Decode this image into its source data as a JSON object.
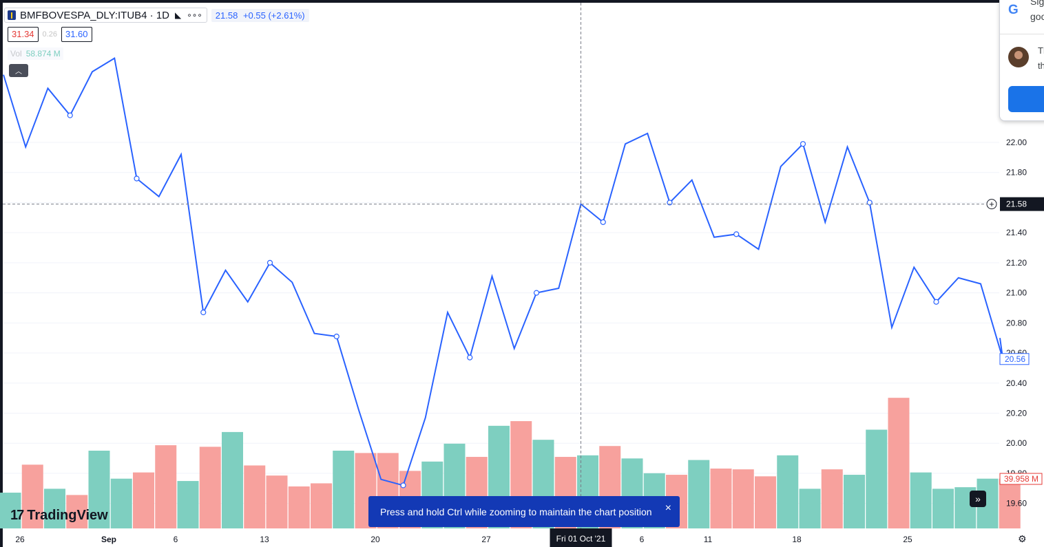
{
  "header": {
    "symbol": "BMFBOVESPA_DLY:ITUB4 · 1D",
    "last_price": "21.58",
    "change": "+0.55 (+2.61%)",
    "ohlc_low": "31.34",
    "ohlc_mid": "0.26",
    "ohlc_high": "31.60",
    "volume_label": "Vol",
    "volume_value": "58.874 M"
  },
  "popup": {
    "google_icon": "G",
    "line1": "Sig",
    "line2": "goo",
    "line3": "Th",
    "line4": "th"
  },
  "toast": {
    "text": "Press and hold Ctrl while zooming to maintain the chart position",
    "close_icon": "×"
  },
  "branding": {
    "logo_mark": "17",
    "logo_text": "TradingView"
  },
  "icons": {
    "collapse": "chevron-up-icon",
    "scroll": "double-chevron-right-icon",
    "settings": "settings-icon",
    "close": "close-icon"
  },
  "colors": {
    "line": "#2962ff",
    "vol_up": "#7ecfc0",
    "vol_down": "#f7a19d",
    "toast_bg": "#1339b5",
    "crosshair": "#787b86"
  },
  "chart_data": {
    "type": "line",
    "price_ylim": [
      19.45,
      22.6
    ],
    "y_ticks": [
      "22.00",
      "21.80",
      "21.60",
      "21.40",
      "21.20",
      "21.00",
      "20.80",
      "20.60",
      "20.40",
      "20.20",
      "20.00",
      "19.80",
      "19.60"
    ],
    "x_ticks": [
      "26",
      "Sep",
      "6",
      "13",
      "20",
      "27",
      "6",
      "11",
      "18",
      "25"
    ],
    "crosshair_x_label": "Fri 01 Oct '21",
    "crosshair_price_label": "21.58",
    "last_price_label": "20.56",
    "volume_label": "39.958 M",
    "series": [
      {
        "values": [
          22.45,
          21.97,
          22.36,
          22.18,
          22.47,
          22.56,
          21.76,
          21.64,
          21.92,
          20.87,
          21.15,
          20.94,
          21.2,
          21.07,
          20.73,
          20.71,
          20.22,
          19.76,
          19.72,
          20.17,
          20.87,
          20.57,
          21.11,
          20.63,
          21.0,
          21.03,
          21.59,
          21.47,
          21.99,
          22.06,
          21.6,
          21.75,
          21.37,
          21.39,
          21.29,
          21.84,
          21.99,
          21.47,
          21.97,
          21.6,
          20.77,
          21.17,
          20.94,
          21.1,
          21.06,
          20.56
        ]
      }
    ],
    "volume": [
      {
        "value": 0.46,
        "dir": "up"
      },
      {
        "value": 0.82,
        "dir": "down"
      },
      {
        "value": 0.51,
        "dir": "up"
      },
      {
        "value": 0.43,
        "dir": "down"
      },
      {
        "value": 1.0,
        "dir": "up"
      },
      {
        "value": 0.64,
        "dir": "up"
      },
      {
        "value": 0.72,
        "dir": "down"
      },
      {
        "value": 1.07,
        "dir": "down"
      },
      {
        "value": 0.61,
        "dir": "up"
      },
      {
        "value": 1.05,
        "dir": "down"
      },
      {
        "value": 1.24,
        "dir": "up"
      },
      {
        "value": 0.81,
        "dir": "down"
      },
      {
        "value": 0.68,
        "dir": "down"
      },
      {
        "value": 0.54,
        "dir": "down"
      },
      {
        "value": 0.58,
        "dir": "down"
      },
      {
        "value": 1.0,
        "dir": "up"
      },
      {
        "value": 0.97,
        "dir": "down"
      },
      {
        "value": 0.97,
        "dir": "down"
      },
      {
        "value": 0.74,
        "dir": "down"
      },
      {
        "value": 0.86,
        "dir": "up"
      },
      {
        "value": 1.09,
        "dir": "up"
      },
      {
        "value": 0.92,
        "dir": "down"
      },
      {
        "value": 1.32,
        "dir": "up"
      },
      {
        "value": 1.38,
        "dir": "down"
      },
      {
        "value": 1.14,
        "dir": "up"
      },
      {
        "value": 0.92,
        "dir": "down"
      },
      {
        "value": 0.94,
        "dir": "up"
      },
      {
        "value": 1.06,
        "dir": "down"
      },
      {
        "value": 0.9,
        "dir": "up"
      },
      {
        "value": 0.71,
        "dir": "up"
      },
      {
        "value": 0.69,
        "dir": "down"
      },
      {
        "value": 0.88,
        "dir": "up"
      },
      {
        "value": 0.77,
        "dir": "down"
      },
      {
        "value": 0.76,
        "dir": "down"
      },
      {
        "value": 0.67,
        "dir": "down"
      },
      {
        "value": 0.94,
        "dir": "up"
      },
      {
        "value": 0.51,
        "dir": "up"
      },
      {
        "value": 0.76,
        "dir": "down"
      },
      {
        "value": 0.69,
        "dir": "up"
      },
      {
        "value": 1.27,
        "dir": "up"
      },
      {
        "value": 1.68,
        "dir": "down"
      },
      {
        "value": 0.72,
        "dir": "up"
      },
      {
        "value": 0.51,
        "dir": "up"
      },
      {
        "value": 0.53,
        "dir": "up"
      },
      {
        "value": 0.64,
        "dir": "up"
      },
      {
        "value": 0.64,
        "dir": "down"
      }
    ]
  }
}
